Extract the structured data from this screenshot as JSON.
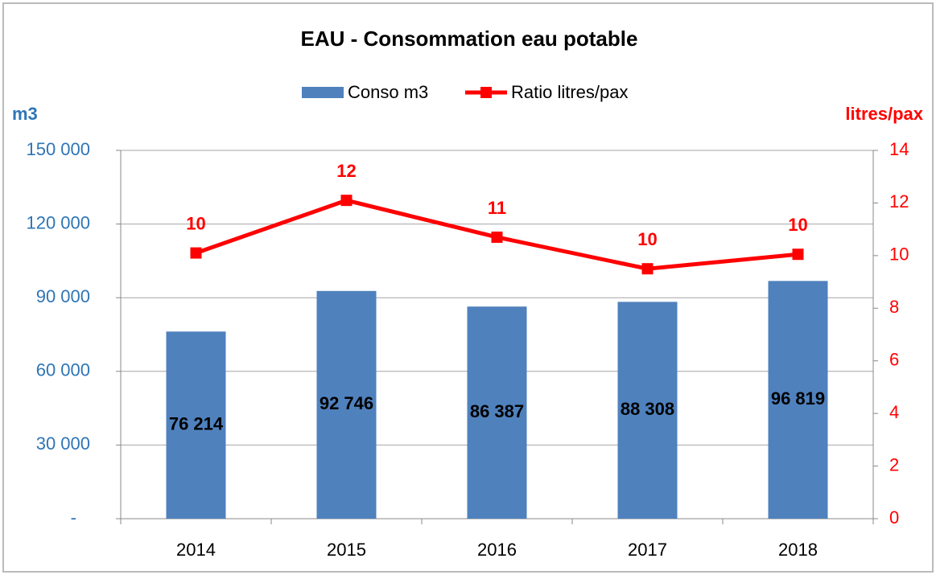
{
  "chart_data": {
    "type": "bar-line",
    "title": "EAU - Consommation eau potable",
    "y_label": "m3",
    "y2_label": "litres/pax",
    "categories": [
      "2014",
      "2015",
      "2016",
      "2017",
      "2018"
    ],
    "series": [
      {
        "name": "Conso m3",
        "type": "bar",
        "color": "#4f81bd",
        "values": [
          76214,
          92746,
          86387,
          88308,
          96819
        ],
        "value_labels": [
          "76 214",
          "92 746",
          "86 387",
          "88 308",
          "96 819"
        ]
      },
      {
        "name": "Ratio litres/pax",
        "type": "line",
        "axis": "y2",
        "color": "#ff0000",
        "values": [
          10.1,
          12.1,
          10.7,
          9.5,
          10.05
        ],
        "value_labels": [
          "10",
          "12",
          "11",
          "10",
          "10"
        ]
      }
    ],
    "ylim": [
      0,
      150000
    ],
    "yticks": [
      {
        "value": 0,
        "label": "-"
      },
      {
        "value": 30000,
        "label": "30 000"
      },
      {
        "value": 60000,
        "label": "60 000"
      },
      {
        "value": 90000,
        "label": "90 000"
      },
      {
        "value": 120000,
        "label": "120 000"
      },
      {
        "value": 150000,
        "label": "150 000"
      }
    ],
    "y2lim": [
      0,
      14
    ],
    "y2ticks": [
      0,
      2,
      4,
      6,
      8,
      10,
      12,
      14
    ],
    "grid": true,
    "legend": "top"
  }
}
